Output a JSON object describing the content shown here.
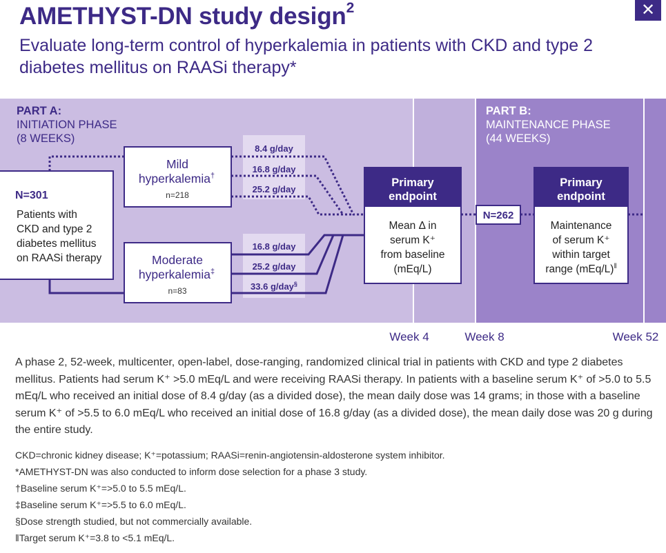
{
  "header": {
    "title": "AMETHYST-DN study design",
    "title_sup": "2",
    "subtitle": "Evaluate long-term control of hyperkalemia in patients with CKD and type 2 diabetes mellitus on RAASi therapy*",
    "close_label": "✕"
  },
  "part_a": {
    "label": "PART A:",
    "phase": "INITIATION PHASE",
    "duration": "(8 WEEKS)"
  },
  "part_b": {
    "label": "PART B:",
    "phase": "MAINTENANCE PHASE",
    "duration": "(44 WEEKS)"
  },
  "enrollment": {
    "n": "N=301",
    "desc": [
      "Patients with",
      "CKD and type 2",
      "diabetes mellitus",
      "on RAASi therapy"
    ]
  },
  "mild": {
    "line1": "Mild",
    "line2": "hyperkalemia",
    "sup": "†",
    "n": "n=218",
    "doses": [
      "8.4 g/day",
      "16.8 g/day",
      "25.2 g/day"
    ]
  },
  "moderate": {
    "line1": "Moderate",
    "line2": "hyperkalemia",
    "sup": "‡",
    "n": "n=83",
    "doses": [
      "16.8 g/day",
      "25.2 g/day",
      "33.6 g/day"
    ],
    "last_sup": "§"
  },
  "primary_a": {
    "title": [
      "Primary",
      "endpoint"
    ],
    "body": [
      "Mean Δ in",
      "serum K⁺",
      "from baseline",
      "(mEq/L)"
    ]
  },
  "transition_n": "N=262",
  "primary_b": {
    "title": [
      "Primary",
      "endpoint"
    ],
    "body": [
      "Maintenance",
      "of serum K⁺",
      "within target",
      "range (mEq/L)"
    ],
    "sup": "ǁ"
  },
  "weeks": [
    "Week 4",
    "Week 8",
    "Week 52"
  ],
  "colors": {
    "dark": "#3d2a86",
    "part_a_bg": "#cbbde2",
    "part_a_mid": "#c0b0dc",
    "part_b_bg": "#9b83c9",
    "dose_bg": "#e3daf0"
  },
  "note": "A phase 2, 52-week, multicenter, open-label, dose-ranging, randomized clinical trial in patients with CKD and type 2 diabetes mellitus. Patients had serum K⁺ >5.0 mEq/L and were receiving RAASi therapy. In patients with a baseline serum K⁺ of >5.0 to 5.5 mEq/L who received an initial dose of 8.4 g/day (as a divided dose), the mean daily dose was 14 grams; in those with a baseline serum K⁺ of >5.5 to 6.0 mEq/L who received an initial dose of 16.8 g/day (as a divided dose), the mean daily dose was 20 g during the entire study.",
  "footnotes": [
    "CKD=chronic kidney disease; K⁺=potassium; RAASi=renin-angiotensin-aldosterone system inhibitor.",
    "*AMETHYST-DN was also conducted to inform dose selection for a phase 3 study.",
    "†Baseline serum K⁺=>5.0 to 5.5 mEq/L.",
    "‡Baseline serum K⁺=>5.5 to 6.0 mEq/L.",
    "§Dose strength studied, but not commercially available.",
    "ǁTarget serum K⁺=3.8 to <5.1 mEq/L."
  ]
}
